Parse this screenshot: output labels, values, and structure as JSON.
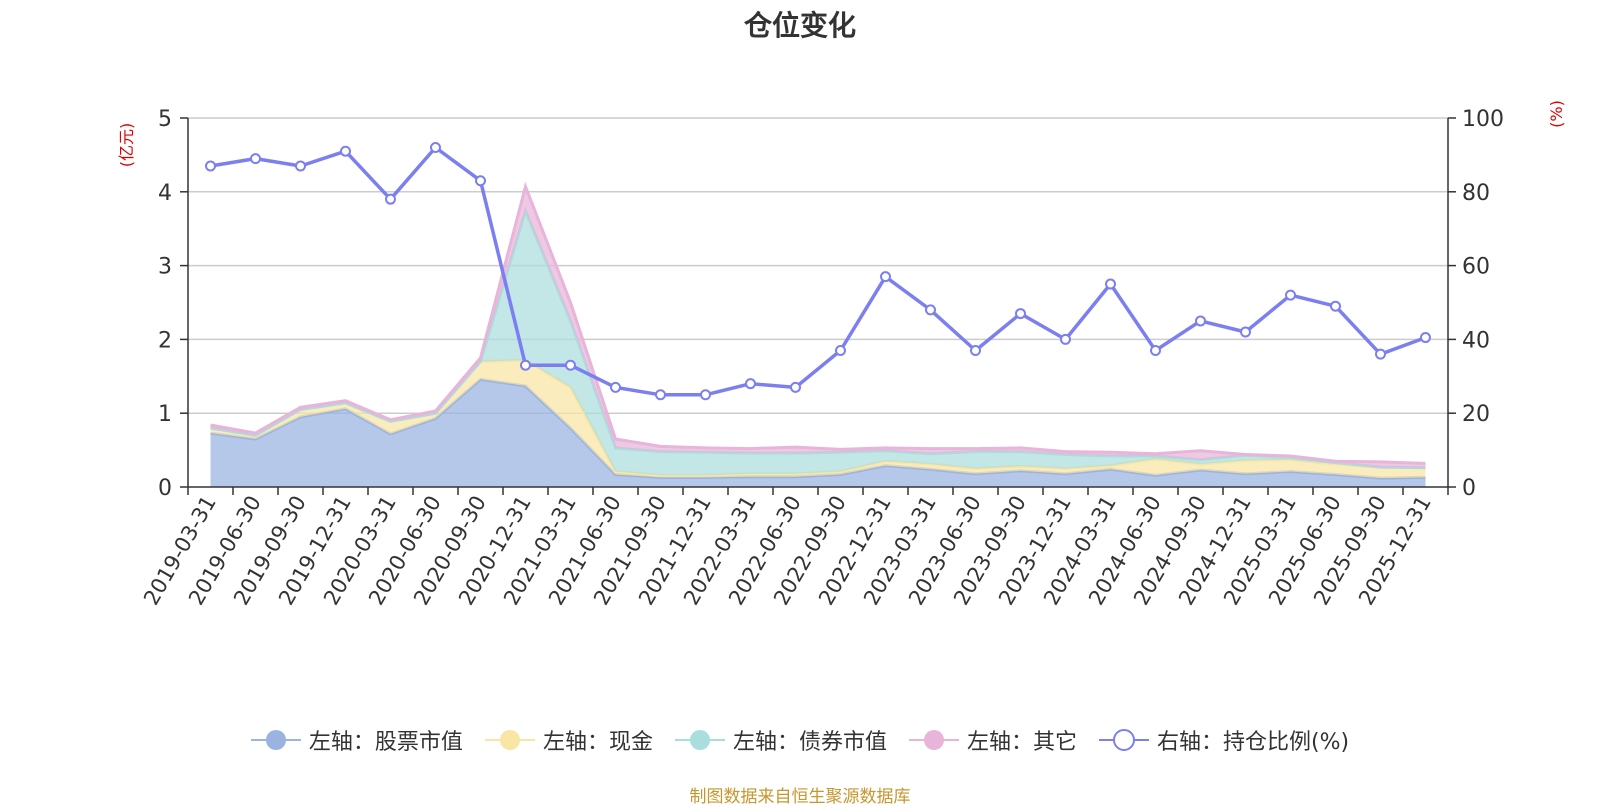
{
  "chart_data": {
    "type": "area",
    "title": "仓位变化",
    "left_axis_label": "(亿元)",
    "right_axis_label": "(%)",
    "left_ylim": [
      0,
      5
    ],
    "left_ticks": [
      "0",
      "1",
      "2",
      "3",
      "4",
      "5"
    ],
    "right_ylim": [
      0,
      100
    ],
    "right_ticks": [
      "0",
      "20",
      "40",
      "60",
      "80",
      "100"
    ],
    "categories": [
      "2019-03-31",
      "2019-06-30",
      "2019-09-30",
      "2019-12-31",
      "2020-03-31",
      "2020-06-30",
      "2020-09-30",
      "2020-12-31",
      "2021-03-31",
      "2021-06-30",
      "2021-09-30",
      "2021-12-31",
      "2022-03-31",
      "2022-06-30",
      "2022-09-30",
      "2022-12-31",
      "2023-03-31",
      "2023-06-30",
      "2023-09-30",
      "2023-12-31",
      "2024-03-31",
      "2024-06-30",
      "2024-09-30",
      "2024-12-31",
      "2025-03-31",
      "2025-06-30",
      "2025-09-30",
      "2025-12-31"
    ],
    "series": [
      {
        "name": "左轴：股票市值",
        "axis": "left",
        "kind": "stack",
        "color": "#9ab3e0",
        "values": [
          0.73,
          0.65,
          0.95,
          1.06,
          0.72,
          0.93,
          1.46,
          1.37,
          0.8,
          0.17,
          0.13,
          0.13,
          0.14,
          0.14,
          0.17,
          0.29,
          0.24,
          0.18,
          0.22,
          0.18,
          0.24,
          0.16,
          0.23,
          0.18,
          0.21,
          0.17,
          0.12,
          0.13
        ]
      },
      {
        "name": "左轴：现金",
        "axis": "left",
        "kind": "stack",
        "color": "#f9e5a4",
        "values": [
          0.07,
          0.05,
          0.1,
          0.08,
          0.17,
          0.07,
          0.24,
          0.35,
          0.55,
          0.04,
          0.03,
          0.03,
          0.04,
          0.04,
          0.04,
          0.06,
          0.07,
          0.07,
          0.06,
          0.07,
          0.05,
          0.22,
          0.08,
          0.18,
          0.16,
          0.14,
          0.15,
          0.13
        ]
      },
      {
        "name": "左轴：债券市值",
        "axis": "left",
        "kind": "stack",
        "color": "#aadedd",
        "values": [
          0,
          0,
          0,
          0,
          0,
          0,
          0,
          2.02,
          0.9,
          0.32,
          0.32,
          0.31,
          0.28,
          0.28,
          0.26,
          0.14,
          0.14,
          0.23,
          0.2,
          0.19,
          0.13,
          0.04,
          0.06,
          0.07,
          0.03,
          0.02,
          0,
          0
        ]
      },
      {
        "name": "左轴：其它",
        "axis": "left",
        "kind": "stack",
        "color": "#e8b4d9",
        "values": [
          0.04,
          0.03,
          0.03,
          0.03,
          0.02,
          0.03,
          0.05,
          0.33,
          0.25,
          0.12,
          0.07,
          0.06,
          0.06,
          0.08,
          0.04,
          0.04,
          0.07,
          0.04,
          0.05,
          0.04,
          0.05,
          0.03,
          0.12,
          0.01,
          0.02,
          0.02,
          0.07,
          0.06
        ]
      },
      {
        "name": "右轴：持仓比例(%)",
        "axis": "right",
        "kind": "line",
        "color": "#7b7ff0",
        "values": [
          87,
          89,
          87,
          91,
          78,
          92,
          83,
          33,
          33,
          27,
          25,
          25,
          28,
          27,
          37,
          57,
          48,
          37,
          47,
          40,
          55,
          37,
          45,
          42,
          52,
          49,
          36,
          40.5
        ]
      }
    ],
    "source_note": "制图数据来自恒生聚源数据库"
  }
}
